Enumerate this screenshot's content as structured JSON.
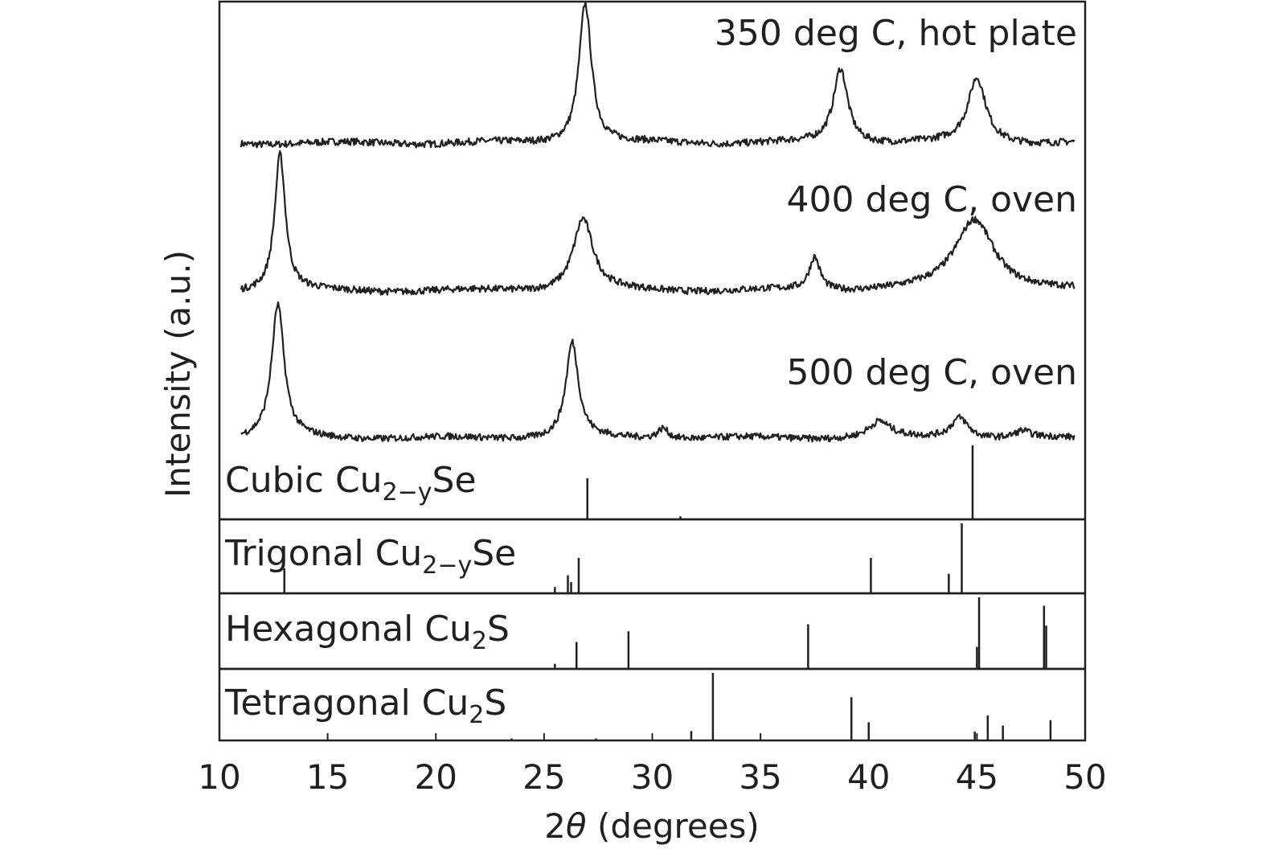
{
  "chart_data": {
    "type": "line",
    "xlabel_prefix": "2",
    "xlabel_symbol": "θ",
    "xlabel_suffix": " (degrees)",
    "ylabel": "Intensity (a.u.)",
    "xlim": [
      10,
      50
    ],
    "xticks": [
      "10",
      "15",
      "20",
      "25",
      "30",
      "35",
      "40",
      "45",
      "50"
    ],
    "grid": false,
    "series": [
      {
        "name": "350 deg C, hot plate",
        "x_range": [
          11,
          49.5
        ],
        "peaks": [
          {
            "x": 26.9,
            "height": 1.0,
            "width": 0.35
          },
          {
            "x": 38.7,
            "height": 0.53,
            "width": 0.4
          },
          {
            "x": 45.0,
            "height": 0.46,
            "width": 0.5
          }
        ]
      },
      {
        "name": "400 deg C, oven",
        "x_range": [
          11,
          49.5
        ],
        "peaks": [
          {
            "x": 12.8,
            "height": 1.0,
            "width": 0.3
          },
          {
            "x": 26.8,
            "height": 0.53,
            "width": 0.55
          },
          {
            "x": 37.5,
            "height": 0.24,
            "width": 0.3
          },
          {
            "x": 44.9,
            "height": 0.53,
            "width": 1.1
          }
        ]
      },
      {
        "name": "500 deg C, oven",
        "x_range": [
          11,
          49.5
        ],
        "peaks": [
          {
            "x": 12.7,
            "height": 1.0,
            "width": 0.35
          },
          {
            "x": 26.3,
            "height": 0.72,
            "width": 0.35
          },
          {
            "x": 30.5,
            "height": 0.08,
            "width": 0.3
          },
          {
            "x": 40.5,
            "height": 0.12,
            "width": 0.6
          },
          {
            "x": 44.2,
            "height": 0.16,
            "width": 0.5
          },
          {
            "x": 47.1,
            "height": 0.05,
            "width": 0.4
          }
        ]
      }
    ],
    "references": [
      {
        "name_main": "Cubic Cu",
        "name_sub": "2−y",
        "name_suffix": "Se",
        "lines": [
          {
            "x": 27.0,
            "intensity": 0.55
          },
          {
            "x": 31.3,
            "intensity": 0.03
          },
          {
            "x": 44.8,
            "intensity": 1.0
          }
        ]
      },
      {
        "name_main": "Trigonal Cu",
        "name_sub": "2−y",
        "name_suffix": "Se",
        "lines": [
          {
            "x": 13.0,
            "intensity": 0.35
          },
          {
            "x": 25.5,
            "intensity": 0.08
          },
          {
            "x": 26.1,
            "intensity": 0.25
          },
          {
            "x": 26.25,
            "intensity": 0.15
          },
          {
            "x": 26.6,
            "intensity": 0.5
          },
          {
            "x": 40.1,
            "intensity": 0.5
          },
          {
            "x": 43.7,
            "intensity": 0.27
          },
          {
            "x": 44.3,
            "intensity": 1.0
          }
        ]
      },
      {
        "name_main": "Hexagonal Cu",
        "name_sub": "2",
        "name_suffix": "S",
        "lines": [
          {
            "x": 25.5,
            "intensity": 0.06
          },
          {
            "x": 26.5,
            "intensity": 0.37
          },
          {
            "x": 28.9,
            "intensity": 0.52
          },
          {
            "x": 37.2,
            "intensity": 0.62
          },
          {
            "x": 45.0,
            "intensity": 0.3
          },
          {
            "x": 45.1,
            "intensity": 1.0
          },
          {
            "x": 48.1,
            "intensity": 0.88
          },
          {
            "x": 48.2,
            "intensity": 0.6
          }
        ]
      },
      {
        "name_main": "Tetragonal Cu",
        "name_sub": "2",
        "name_suffix": "S",
        "lines": [
          {
            "x": 23.5,
            "intensity": 0.03
          },
          {
            "x": 27.4,
            "intensity": 0.03
          },
          {
            "x": 31.8,
            "intensity": 0.14
          },
          {
            "x": 32.8,
            "intensity": 1.0
          },
          {
            "x": 39.2,
            "intensity": 0.64
          },
          {
            "x": 40.0,
            "intensity": 0.27
          },
          {
            "x": 44.9,
            "intensity": 0.13
          },
          {
            "x": 45.5,
            "intensity": 0.37
          },
          {
            "x": 46.2,
            "intensity": 0.22
          },
          {
            "x": 48.4,
            "intensity": 0.3
          }
        ]
      }
    ]
  }
}
